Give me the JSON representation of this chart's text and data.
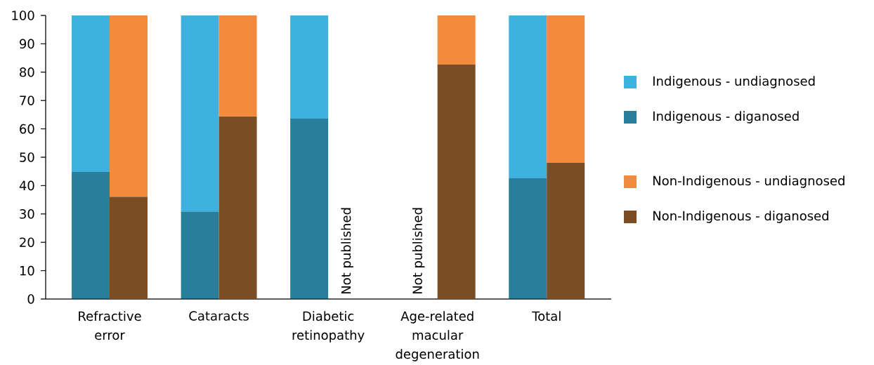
{
  "chart_data": [
    {
      "type": "bar",
      "stacked": true,
      "categories": [
        "Refractive error",
        "Cataracts",
        "Diabetic retinopathy",
        "Age-related macular degeneration",
        "Total"
      ],
      "series": [
        {
          "name": "Indigenous - diganosed",
          "color": "#287f9b",
          "values": [
            44.8,
            30.9,
            63.6,
            null,
            42.6
          ]
        },
        {
          "name": "Indigenous - undiagnosed",
          "color": "#3eb1de",
          "values": [
            55.2,
            69.1,
            36.4,
            null,
            57.4
          ]
        }
      ],
      "ylim": [
        0,
        100
      ],
      "yticks": [
        0,
        10,
        20,
        30,
        40,
        50,
        60,
        70,
        80,
        90,
        100
      ],
      "legend": "right",
      "annotations": [
        "Not published"
      ]
    },
    {
      "type": "bar",
      "stacked": true,
      "categories": [
        null,
        null,
        null,
        null,
        null
      ],
      "series": [
        {
          "name": "Non-Indigenous - diganosed",
          "color": "#7b4d24",
          "values": [
            36.1,
            64.4,
            null,
            82.7,
            48.0
          ]
        },
        {
          "name": "Non-Indigenous - undiagnosed",
          "color": "#f28c3c",
          "values": [
            63.9,
            35.6,
            null,
            17.3,
            52.0
          ]
        }
      ],
      "ylim": [
        0,
        100
      ],
      "yticks": [
        0,
        10,
        20,
        30,
        40,
        50,
        60,
        70,
        80,
        90,
        100
      ],
      "legend": "right",
      "tick_labels": false,
      "annotations": [
        "Not published"
      ]
    }
  ]
}
